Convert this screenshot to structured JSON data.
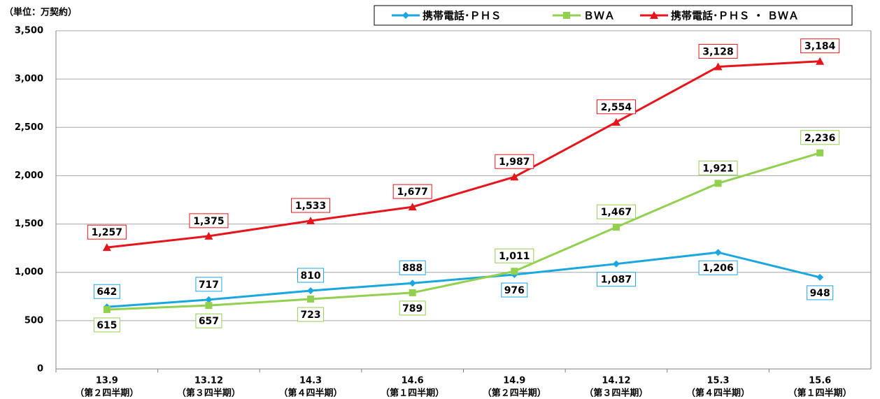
{
  "chart_data": {
    "type": "line",
    "y_axis_label": "（単位：万契約）",
    "categories": [
      [
        "13.9",
        "（第２四半期）"
      ],
      [
        "13.12",
        "（第３四半期）"
      ],
      [
        "14.3",
        "（第４四半期）"
      ],
      [
        "14.6",
        "（第１四半期）"
      ],
      [
        "14.9",
        "（第２四半期）"
      ],
      [
        "14.12",
        "（第３四半期）"
      ],
      [
        "15.3",
        "（第４四半期）"
      ],
      [
        "15.6",
        "（第１四半期）"
      ]
    ],
    "series": [
      {
        "name": "携帯電話･ＰＨＳ",
        "color": "#1aa7e0",
        "marker": "diamond",
        "values": [
          642,
          717,
          810,
          888,
          976,
          1087,
          1206,
          948
        ],
        "value_labels": [
          "642",
          "717",
          "810",
          "888",
          "976",
          "1,087",
          "1,206",
          "948"
        ]
      },
      {
        "name": "ＢＷＡ",
        "color": "#92d050",
        "marker": "square",
        "values": [
          615,
          657,
          723,
          789,
          1011,
          1467,
          1921,
          2236
        ],
        "value_labels": [
          "615",
          "657",
          "723",
          "789",
          "1,011",
          "1,467",
          "1,921",
          "2,236"
        ]
      },
      {
        "name": "携帯電話･ＰＨＳ ・ ＢＷＡ",
        "color": "#e8141b",
        "marker": "triangle",
        "values": [
          1257,
          1375,
          1533,
          1677,
          1987,
          2554,
          3128,
          3184
        ],
        "value_labels": [
          "1,257",
          "1,375",
          "1,533",
          "1,677",
          "1,987",
          "2,554",
          "3,128",
          "3,184"
        ]
      }
    ],
    "ylim": [
      0,
      3500
    ],
    "yticks": [
      0,
      500,
      {
        "value": 1000,
        "label": "1,000"
      },
      {
        "value": 1500,
        "label": "1,500"
      },
      {
        "value": 2000,
        "label": "2,000"
      },
      {
        "value": 2500,
        "label": "2,500"
      },
      {
        "value": 3000,
        "label": "3,000"
      },
      {
        "value": 3500,
        "label": "3,500"
      }
    ],
    "grid": true
  }
}
